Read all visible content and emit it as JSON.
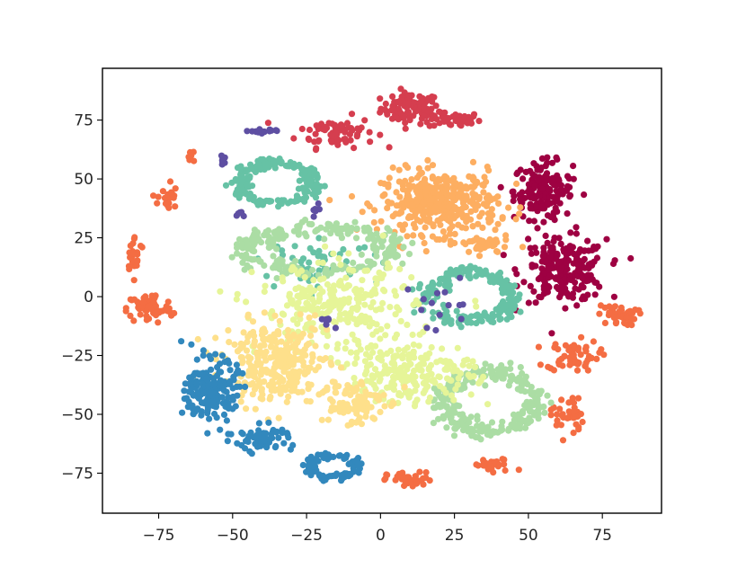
{
  "chart_data": {
    "type": "scatter",
    "title": "",
    "xlabel": "",
    "ylabel": "",
    "xlim": [
      -94,
      95
    ],
    "ylim": [
      -92,
      97
    ],
    "xticks": [
      -75,
      -50,
      -25,
      0,
      25,
      50,
      75
    ],
    "yticks": [
      -75,
      -50,
      -25,
      0,
      25,
      50,
      75
    ],
    "xtick_labels": [
      "−75",
      "−50",
      "−25",
      "0",
      "25",
      "50",
      "75"
    ],
    "ytick_labels": [
      "−75",
      "−50",
      "−25",
      "0",
      "25",
      "50",
      "75"
    ],
    "grid": false,
    "legend": "none",
    "point_clusters": [
      {
        "color": "#d53e4f",
        "shape": "blob",
        "center": [
          10,
          80
        ],
        "spread": [
          9,
          6
        ],
        "count": 90
      },
      {
        "color": "#d53e4f",
        "shape": "blob",
        "center": [
          25,
          75
        ],
        "spread": [
          8,
          3
        ],
        "count": 40
      },
      {
        "color": "#d53e4f",
        "shape": "blob",
        "center": [
          -15,
          70
        ],
        "spread": [
          12,
          6
        ],
        "count": 70
      },
      {
        "color": "#9e0142",
        "shape": "blob",
        "center": [
          55,
          45
        ],
        "spread": [
          9,
          11
        ],
        "count": 160
      },
      {
        "color": "#9e0142",
        "shape": "blob",
        "center": [
          62,
          11
        ],
        "spread": [
          13,
          12
        ],
        "count": 220
      },
      {
        "color": "#f46d43",
        "shape": "blob",
        "center": [
          -78,
          -5
        ],
        "spread": [
          7,
          6
        ],
        "count": 70
      },
      {
        "color": "#f46d43",
        "shape": "blob",
        "center": [
          -83,
          18
        ],
        "spread": [
          3,
          7
        ],
        "count": 25
      },
      {
        "color": "#f46d43",
        "shape": "blob",
        "center": [
          -72,
          42
        ],
        "spread": [
          3,
          7
        ],
        "count": 22
      },
      {
        "color": "#f46d43",
        "shape": "blob",
        "center": [
          -64,
          60
        ],
        "spread": [
          1.5,
          3
        ],
        "count": 6
      },
      {
        "color": "#f46d43",
        "shape": "blob",
        "center": [
          65,
          -25
        ],
        "spread": [
          8,
          6
        ],
        "count": 60
      },
      {
        "color": "#f46d43",
        "shape": "blob",
        "center": [
          80,
          -8
        ],
        "spread": [
          6,
          4
        ],
        "count": 40
      },
      {
        "color": "#f46d43",
        "shape": "blob",
        "center": [
          63,
          -50
        ],
        "spread": [
          5,
          9
        ],
        "count": 35
      },
      {
        "color": "#f46d43",
        "shape": "blob",
        "center": [
          10,
          -78
        ],
        "spread": [
          7,
          3
        ],
        "count": 40
      },
      {
        "color": "#f46d43",
        "shape": "blob",
        "center": [
          38,
          -72
        ],
        "spread": [
          7,
          3
        ],
        "count": 25
      },
      {
        "color": "#fdae61",
        "shape": "blob",
        "center": [
          20,
          40
        ],
        "spread": [
          18,
          12
        ],
        "count": 380
      },
      {
        "color": "#fdae61",
        "shape": "blob",
        "center": [
          35,
          22
        ],
        "spread": [
          8,
          4
        ],
        "count": 40
      },
      {
        "color": "#66c2a5",
        "shape": "ring",
        "center": [
          -35,
          48
        ],
        "spread": [
          16,
          11
        ],
        "count": 180
      },
      {
        "color": "#66c2a5",
        "shape": "ring",
        "center": [
          30,
          0
        ],
        "spread": [
          18,
          13
        ],
        "count": 190
      },
      {
        "color": "#66c2a5",
        "shape": "blob",
        "center": [
          -20,
          15
        ],
        "spread": [
          18,
          8
        ],
        "count": 45
      },
      {
        "color": "#abdda4",
        "shape": "ring",
        "center": [
          -20,
          20
        ],
        "spread": [
          32,
          12
        ],
        "count": 260
      },
      {
        "color": "#abdda4",
        "shape": "ring",
        "center": [
          37,
          -45
        ],
        "spread": [
          20,
          16
        ],
        "count": 260
      },
      {
        "color": "#e6f598",
        "shape": "blob",
        "center": [
          -15,
          -5
        ],
        "spread": [
          24,
          17
        ],
        "count": 260
      },
      {
        "color": "#e6f598",
        "shape": "blob",
        "center": [
          10,
          -32
        ],
        "spread": [
          20,
          12
        ],
        "count": 220
      },
      {
        "color": "#fee08b",
        "shape": "blob",
        "center": [
          -35,
          -28
        ],
        "spread": [
          16,
          15
        ],
        "count": 300
      },
      {
        "color": "#fee08b",
        "shape": "blob",
        "center": [
          -10,
          -45
        ],
        "spread": [
          10,
          10
        ],
        "count": 90
      },
      {
        "color": "#3288bd",
        "shape": "blob",
        "center": [
          -57,
          -40
        ],
        "spread": [
          8,
          12
        ],
        "count": 180
      },
      {
        "color": "#3288bd",
        "shape": "blob",
        "center": [
          -40,
          -60
        ],
        "spread": [
          9,
          5
        ],
        "count": 60
      },
      {
        "color": "#3288bd",
        "shape": "ring",
        "center": [
          -16,
          -72
        ],
        "spread": [
          10,
          6
        ],
        "count": 90
      },
      {
        "color": "#5e4fa2",
        "shape": "blob",
        "center": [
          -40,
          70
        ],
        "spread": [
          4,
          1.5
        ],
        "count": 16
      },
      {
        "color": "#5e4fa2",
        "shape": "blob",
        "center": [
          -53,
          58
        ],
        "spread": [
          2,
          2
        ],
        "count": 6
      },
      {
        "color": "#5e4fa2",
        "shape": "blob",
        "center": [
          -22,
          38
        ],
        "spread": [
          2,
          4
        ],
        "count": 6
      },
      {
        "color": "#5e4fa2",
        "shape": "blob",
        "center": [
          -18,
          -10
        ],
        "spread": [
          2,
          2
        ],
        "count": 8
      },
      {
        "color": "#5e4fa2",
        "shape": "blob",
        "center": [
          20,
          -5
        ],
        "spread": [
          12,
          10
        ],
        "count": 14
      },
      {
        "color": "#5e4fa2",
        "shape": "blob",
        "center": [
          -48,
          35
        ],
        "spread": [
          3,
          1.5
        ],
        "count": 5
      }
    ]
  }
}
